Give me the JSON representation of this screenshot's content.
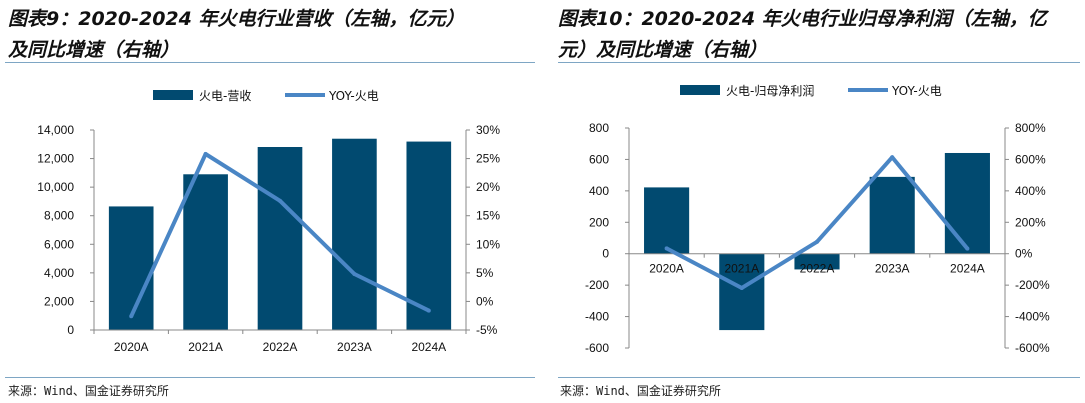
{
  "colors": {
    "bar": "#014a70",
    "line": "#4a86c5",
    "rule": "#7ea6c4",
    "axis": "#888888"
  },
  "footer": {
    "left_source": "来源：Wind、国金证券研究所",
    "right_source": "来源：Wind、国金证券研究所"
  },
  "chart_data": [
    {
      "type": "bar+line",
      "title": "图表9：2020-2024年火电行业营收（左轴，亿元）及同比增速（右轴）",
      "title_lines": [
        "图表9：2020-2024 年火电行业营收（左轴，亿元）",
        "及同比增速（右轴）"
      ],
      "categories": [
        "2020A",
        "2021A",
        "2022A",
        "2023A",
        "2024A"
      ],
      "series": [
        {
          "name": "火电-营收",
          "type": "bar",
          "axis": "left",
          "values": [
            8650,
            10900,
            12810,
            13390,
            13190
          ]
        },
        {
          "name": "YOY-火电",
          "type": "line",
          "axis": "right",
          "values": [
            -2.6,
            25.8,
            17.6,
            4.8,
            -1.6
          ]
        }
      ],
      "left_axis": {
        "ylim": [
          0,
          14000
        ],
        "ticks": [
          0,
          2000,
          4000,
          6000,
          8000,
          10000,
          12000,
          14000
        ],
        "tick_labels": [
          "0",
          "2,000",
          "4,000",
          "6,000",
          "8,000",
          "10,000",
          "12,000",
          "14,000"
        ]
      },
      "right_axis": {
        "ylim": [
          -5,
          30
        ],
        "ticks": [
          -5,
          0,
          5,
          10,
          15,
          20,
          25,
          30
        ],
        "tick_labels": [
          "-5%",
          "0%",
          "5%",
          "10%",
          "15%",
          "20%",
          "25%",
          "30%"
        ]
      },
      "legend": "top-center",
      "grid": false
    },
    {
      "type": "bar+line",
      "title": "图表10：2020-2024年火电行业归母净利润（左轴，亿元）及同比增速（右轴）",
      "title_lines": [
        "图表10：2020-2024 年火电行业归母净利润（左轴，亿",
        "元）及同比增速（右轴）"
      ],
      "categories": [
        "2020A",
        "2021A",
        "2022A",
        "2023A",
        "2024A"
      ],
      "series": [
        {
          "name": "火电-归母净利润",
          "type": "bar",
          "axis": "left",
          "values": [
            422,
            -486,
            -100,
            489,
            641
          ]
        },
        {
          "name": "YOY-火电",
          "type": "line",
          "axis": "right",
          "values": [
            34,
            -218,
            76,
            614,
            32
          ]
        }
      ],
      "left_axis": {
        "ylim": [
          -600,
          800
        ],
        "ticks": [
          -600,
          -400,
          -200,
          0,
          200,
          400,
          600,
          800
        ],
        "tick_labels": [
          "-600",
          "-400",
          "-200",
          "0",
          "200",
          "400",
          "600",
          "800"
        ]
      },
      "right_axis": {
        "ylim": [
          -600,
          800
        ],
        "ticks": [
          -600,
          -400,
          -200,
          0,
          200,
          400,
          600,
          800
        ],
        "tick_labels": [
          "-600%",
          "-400%",
          "-200%",
          "0%",
          "200%",
          "400%",
          "600%",
          "800%"
        ]
      },
      "legend": "top-center",
      "grid": false
    }
  ]
}
